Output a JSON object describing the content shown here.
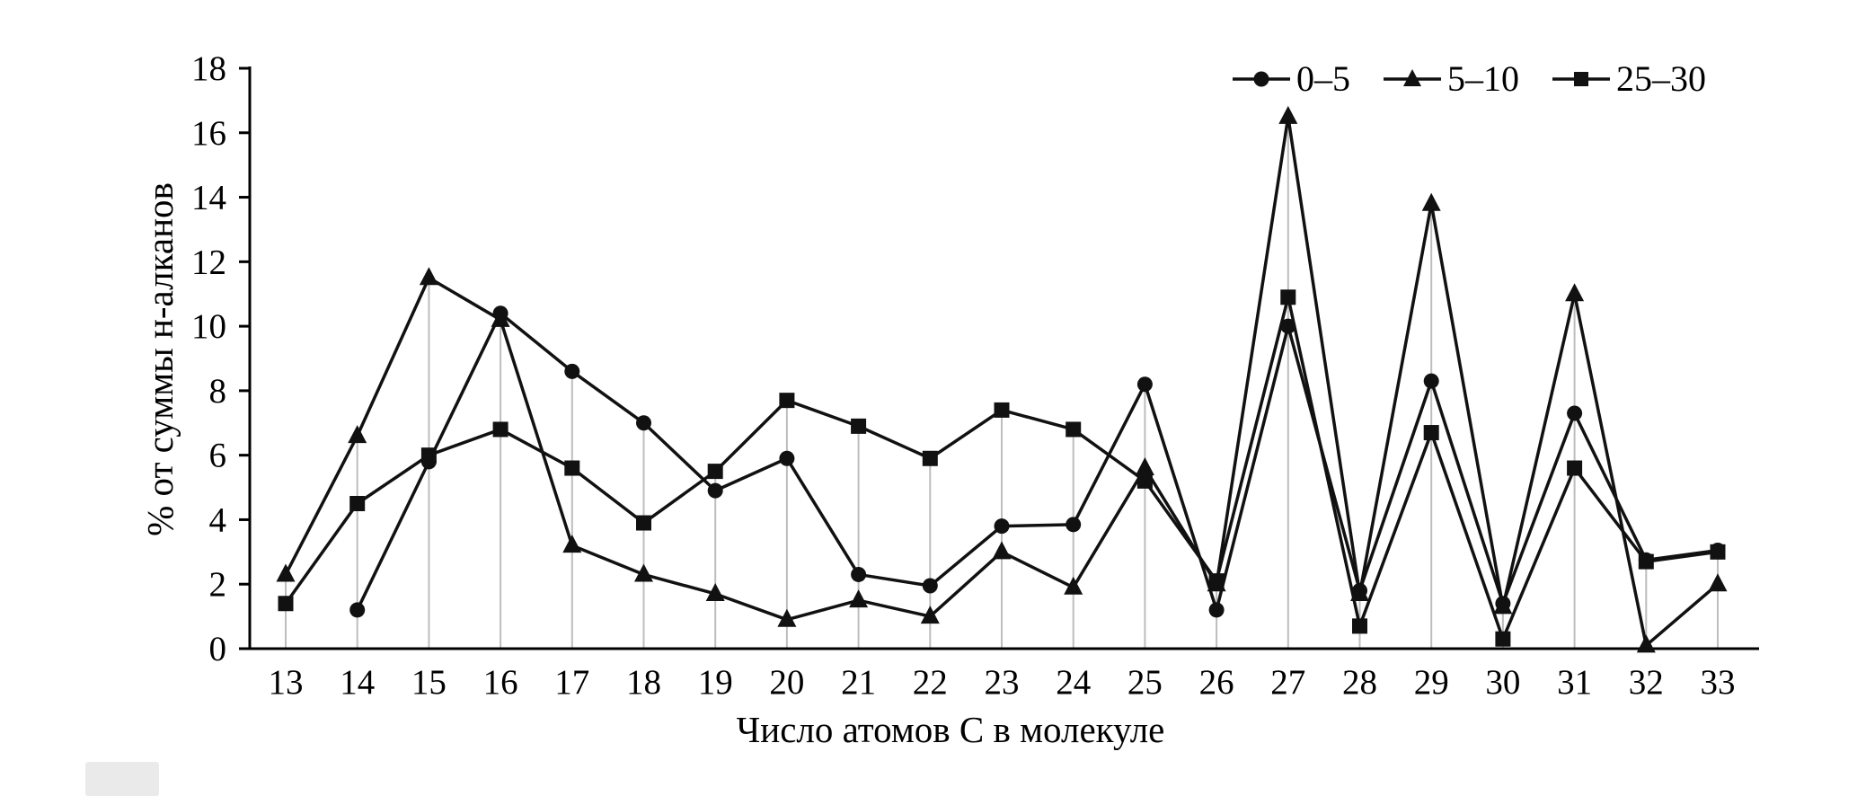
{
  "chart_data": {
    "type": "line",
    "title": "",
    "xlabel": "Число атомов C в молекуле",
    "ylabel": "% от суммы н-алканов",
    "x": [
      13,
      14,
      15,
      16,
      17,
      18,
      19,
      20,
      21,
      22,
      23,
      24,
      25,
      26,
      27,
      28,
      29,
      30,
      31,
      32,
      33
    ],
    "ylim": [
      0,
      18
    ],
    "ytick_step": 2,
    "grid": "vertical gray stems from axis to max point at each x",
    "legend_position": "top-right",
    "series": [
      {
        "name": "0–5",
        "marker": "circle",
        "values": [
          null,
          1.2,
          5.8,
          10.4,
          8.6,
          7.0,
          4.9,
          5.9,
          2.3,
          1.95,
          3.8,
          3.85,
          8.2,
          1.2,
          10.0,
          1.8,
          8.3,
          1.4,
          7.3,
          2.75,
          3.05
        ]
      },
      {
        "name": "5–10",
        "marker": "triangle",
        "values": [
          2.3,
          6.6,
          11.5,
          10.2,
          3.2,
          2.3,
          1.7,
          0.9,
          1.5,
          1.0,
          3.0,
          1.9,
          5.6,
          2.0,
          16.5,
          1.7,
          13.8,
          1.3,
          11.0,
          0.1,
          2.0
        ]
      },
      {
        "name": "25–30",
        "marker": "square",
        "values": [
          1.4,
          4.5,
          6.0,
          6.8,
          5.6,
          3.9,
          5.5,
          7.7,
          6.9,
          5.9,
          7.4,
          6.8,
          5.2,
          2.1,
          10.9,
          0.7,
          6.7,
          0.3,
          5.6,
          2.7,
          3.0
        ]
      }
    ],
    "colors": {
      "line": "#111111",
      "marker": "#111111",
      "stem": "#bdbdbd",
      "axis": "#000000"
    }
  }
}
